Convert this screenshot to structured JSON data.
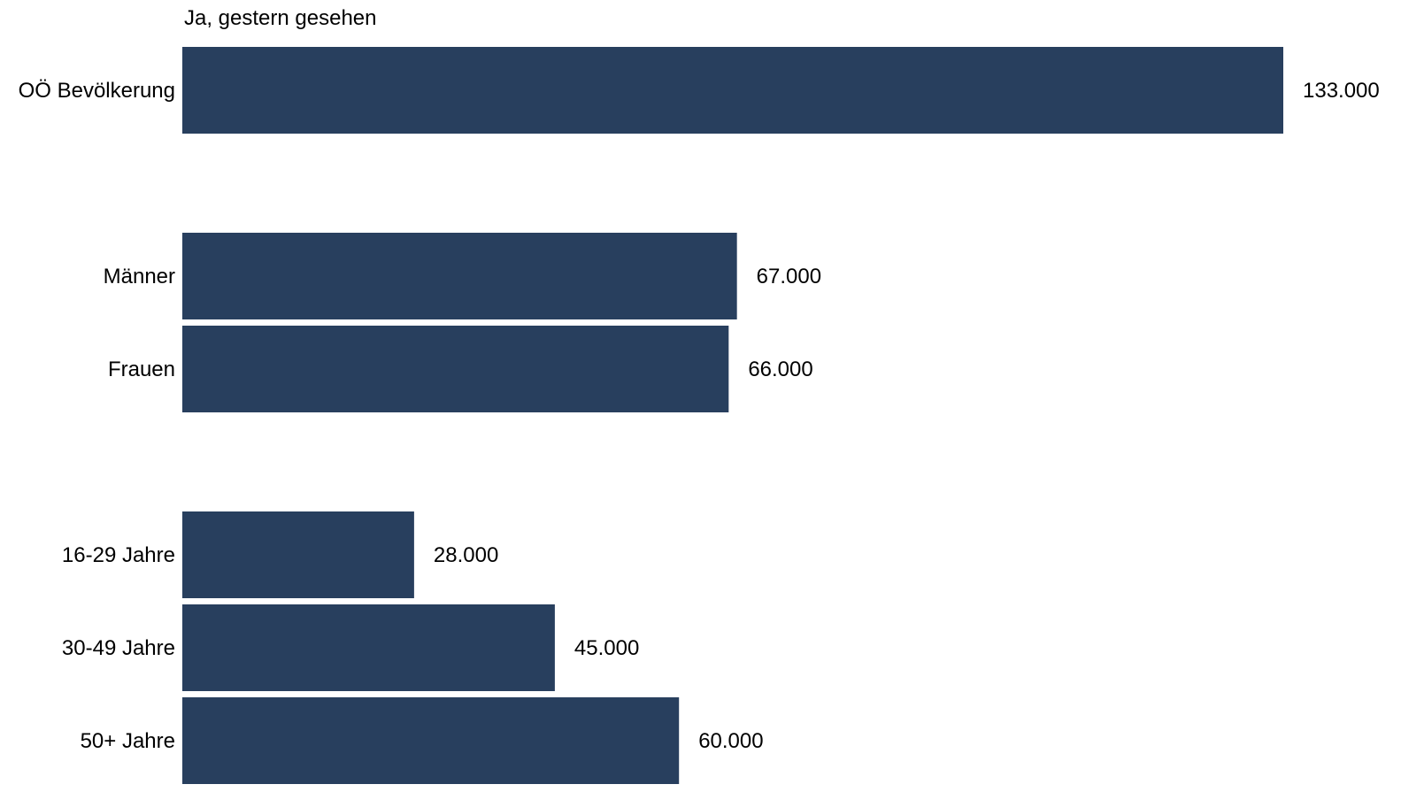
{
  "chart_data": {
    "type": "bar",
    "orientation": "horizontal",
    "series_label": "Ja, gestern gesehen",
    "categories": [
      "OÖ Bevölkerung",
      "Männer",
      "Frauen",
      "16-29 Jahre",
      "30-49 Jahre",
      "50+ Jahre"
    ],
    "groups": [
      [
        0
      ],
      [
        1,
        2
      ],
      [
        3,
        4,
        5
      ]
    ],
    "values": [
      133000,
      67000,
      66000,
      28000,
      45000,
      60000
    ],
    "value_labels": [
      "133.000",
      "67.000",
      "66.000",
      "28.000",
      "45.000",
      "60.000"
    ],
    "xlim": [
      0,
      133000
    ],
    "grid": false,
    "bar_color": "#283F5E"
  }
}
